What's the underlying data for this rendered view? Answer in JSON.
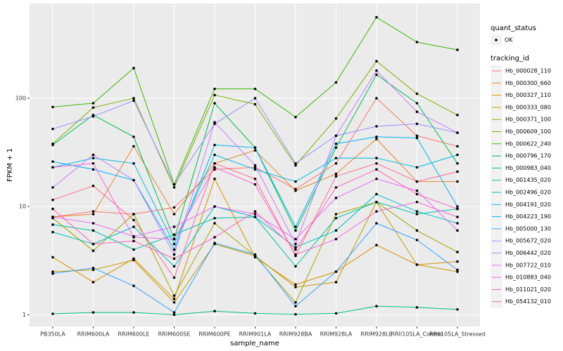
{
  "chart_data": {
    "type": "line",
    "x_label": "sample_name",
    "y_label": "FPKM + 1",
    "log_scale": true,
    "grid": true,
    "legend_position": "right",
    "point_color": "#000000",
    "shape_legend": {
      "title": "quant_status",
      "entries": [
        "OK"
      ]
    },
    "color_legend_title": "tracking_id",
    "categories": [
      "PB350LA",
      "RRIM600LA",
      "RRIM600LE",
      "RRIM600SE",
      "RRIM600PE",
      "RRIM901LA",
      "RRIM928BA",
      "RRIM928LA",
      "RRIM928LE",
      "RRII105LA_Control",
      "RRII105LA_Stressed"
    ],
    "ylim": [
      0.78,
      750
    ],
    "yticks": [
      1,
      10,
      100
    ],
    "series": [
      {
        "name": "Hb_000028_110",
        "color": "#F8766D",
        "values": [
          8,
          9,
          8.5,
          9.8,
          22,
          23,
          14.5,
          25,
          100,
          45,
          36
        ]
      },
      {
        "name": "Hb_000300_660",
        "color": "#EA8331",
        "values": [
          8,
          8.5,
          36,
          8.5,
          25,
          33,
          14,
          20,
          42,
          17,
          17
        ]
      },
      {
        "name": "Hb_000327_110",
        "color": "#D89000",
        "values": [
          3.4,
          2,
          3.3,
          1.4,
          18,
          3.4,
          1.9,
          2.5,
          4.4,
          2.9,
          3.1
        ]
      },
      {
        "name": "Hb_000333_080",
        "color": "#C09B00",
        "values": [
          2.5,
          2.6,
          3.2,
          1.3,
          4.5,
          3.5,
          1.8,
          2.0,
          11,
          2.9,
          2.5
        ]
      },
      {
        "name": "Hb_000371_100",
        "color": "#A3A500",
        "values": [
          7.8,
          3.9,
          8.5,
          1.5,
          7,
          3.5,
          1.3,
          8.5,
          11,
          6,
          3.8
        ]
      },
      {
        "name": "Hb_000609_100",
        "color": "#7CAE00",
        "values": [
          38,
          82,
          100,
          15,
          107,
          88,
          24,
          65,
          220,
          110,
          70
        ]
      },
      {
        "name": "Hb_000622_240",
        "color": "#39B600",
        "values": [
          83,
          90,
          190,
          16,
          122,
          122,
          67,
          140,
          560,
          330,
          280
        ]
      },
      {
        "name": "Hb_000796_170",
        "color": "#00BB4E",
        "values": [
          37,
          70,
          44,
          5,
          90,
          35,
          6,
          35,
          165,
          90,
          25
        ]
      },
      {
        "name": "Hb_000983_040",
        "color": "#00BF7D",
        "values": [
          1.02,
          1.05,
          1.05,
          1.0,
          1.08,
          1.03,
          1.01,
          1.03,
          1.2,
          1.17,
          1.12
        ]
      },
      {
        "name": "Hb_001435_020",
        "color": "#00C1A3",
        "values": [
          6.8,
          6,
          4,
          5.5,
          7.8,
          8,
          2.8,
          7.8,
          11,
          8.5,
          9.5
        ]
      },
      {
        "name": "Hb_002496_020",
        "color": "#00BFC4",
        "values": [
          5.8,
          4.5,
          6.5,
          2.8,
          10,
          8,
          4.2,
          6,
          13,
          9,
          7
        ]
      },
      {
        "name": "Hb_004191_020",
        "color": "#00BAE0",
        "values": [
          23,
          28,
          25,
          4.5,
          30,
          22,
          17,
          28,
          28,
          23,
          30
        ]
      },
      {
        "name": "Hb_004223_190",
        "color": "#00B0F6",
        "values": [
          26,
          22,
          17.5,
          4,
          37,
          35,
          6.5,
          38,
          44,
          43,
          10
        ]
      },
      {
        "name": "Hb_005000_130",
        "color": "#35A2FF",
        "values": [
          2.4,
          2.7,
          1.85,
          1.05,
          4.6,
          3.6,
          1.2,
          2.5,
          7,
          4.9,
          2.6
        ]
      },
      {
        "name": "Hb_005672_020",
        "color": "#9590FF",
        "values": [
          52,
          68,
          95,
          16,
          58,
          100,
          25,
          45,
          55,
          58,
          48
        ]
      },
      {
        "name": "Hb_006442_020",
        "color": "#C77CFF",
        "values": [
          15,
          30,
          17.5,
          3.6,
          60,
          24,
          4.5,
          45,
          180,
          75,
          48
        ]
      },
      {
        "name": "Hb_007722_010",
        "color": "#E76BF3",
        "values": [
          8,
          7,
          5.3,
          6.5,
          10,
          8.5,
          5,
          12,
          18,
          14,
          6
        ]
      },
      {
        "name": "Hb_010883_040",
        "color": "#FA62DB",
        "values": [
          23,
          25,
          5.2,
          5,
          23,
          16,
          3.6,
          5,
          9,
          11,
          8
        ]
      },
      {
        "name": "Hb_011021_020",
        "color": "#FF62BC",
        "values": [
          9.5,
          4.5,
          4.8,
          3.3,
          5.2,
          9,
          4,
          15,
          22,
          13,
          9.5
        ]
      },
      {
        "name": "Hb_054132_010",
        "color": "#FF6C91",
        "values": [
          11.5,
          15.5,
          7.5,
          2.2,
          25,
          18,
          3.5,
          19,
          25,
          17,
          21
        ]
      }
    ]
  }
}
